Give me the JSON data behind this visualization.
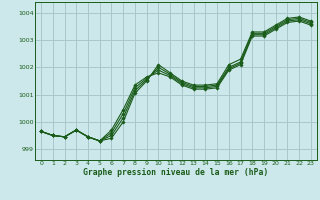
{
  "title": "Graphe pression niveau de la mer (hPa)",
  "bg_color": "#cce8ea",
  "grid_color": "#a8c8cc",
  "line_color": "#1a5c1a",
  "marker_color": "#1a5c1a",
  "xlim": [
    -0.5,
    23.5
  ],
  "ylim": [
    998.6,
    1004.4
  ],
  "yticks": [
    999,
    1000,
    1001,
    1002,
    1003,
    1004
  ],
  "xticks": [
    0,
    1,
    2,
    3,
    4,
    5,
    6,
    7,
    8,
    9,
    10,
    11,
    12,
    13,
    14,
    15,
    16,
    17,
    18,
    19,
    20,
    21,
    22,
    23
  ],
  "series": [
    [
      999.65,
      999.5,
      999.45,
      999.7,
      999.45,
      999.3,
      999.4,
      1000.0,
      1001.05,
      1001.5,
      1002.1,
      1001.8,
      1001.5,
      1001.35,
      1001.35,
      1001.4,
      1002.1,
      1002.3,
      1003.3,
      1003.3,
      1003.55,
      1003.8,
      1003.85,
      1003.7
    ],
    [
      999.65,
      999.5,
      999.45,
      999.7,
      999.45,
      999.3,
      999.5,
      1000.15,
      1001.15,
      1001.55,
      1002.0,
      1001.75,
      1001.45,
      1001.3,
      1001.3,
      1001.35,
      1002.0,
      1002.2,
      1003.25,
      1003.25,
      1003.5,
      1003.75,
      1003.8,
      1003.65
    ],
    [
      999.65,
      999.5,
      999.45,
      999.7,
      999.45,
      999.3,
      999.6,
      1000.3,
      1001.25,
      1001.6,
      1001.9,
      1001.7,
      1001.4,
      1001.25,
      1001.25,
      1001.3,
      1001.95,
      1002.15,
      1003.2,
      1003.2,
      1003.45,
      1003.7,
      1003.75,
      1003.6
    ],
    [
      999.65,
      999.5,
      999.45,
      999.7,
      999.45,
      999.3,
      999.7,
      1000.45,
      1001.35,
      1001.65,
      1001.8,
      1001.65,
      1001.35,
      1001.2,
      1001.2,
      1001.25,
      1001.9,
      1002.1,
      1003.15,
      1003.15,
      1003.4,
      1003.65,
      1003.7,
      1003.55
    ]
  ]
}
